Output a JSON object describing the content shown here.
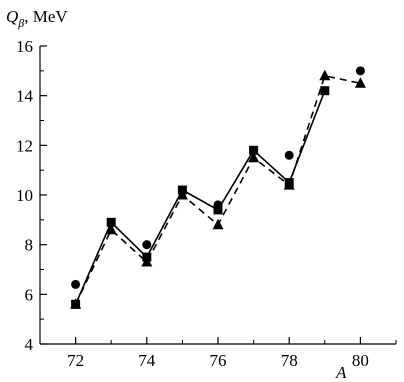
{
  "chart_data": {
    "type": "line",
    "ylabel_symbol": "Q",
    "ylabel_subscript": "β",
    "ylabel_unit": ", MeV",
    "xlabel": "A",
    "xlim": [
      71,
      81
    ],
    "ylim": [
      4,
      16
    ],
    "xticks": [
      72,
      74,
      76,
      78,
      80
    ],
    "yticks": [
      4,
      6,
      8,
      10,
      12,
      14,
      16
    ],
    "grid": false,
    "series": [
      {
        "marker": "square",
        "line": "solid",
        "x": [
          72,
          73,
          74,
          75,
          76,
          77,
          78,
          79
        ],
        "y": [
          5.6,
          8.9,
          7.5,
          10.2,
          9.4,
          11.8,
          10.5,
          14.2
        ]
      },
      {
        "marker": "triangle",
        "line": "dashed",
        "x": [
          72,
          73,
          74,
          75,
          76,
          77,
          78,
          79,
          80
        ],
        "y": [
          5.6,
          8.6,
          7.3,
          10.0,
          8.8,
          11.5,
          10.4,
          14.8,
          14.5
        ]
      },
      {
        "marker": "circle",
        "line": "none",
        "x": [
          72,
          74,
          76,
          78,
          80
        ],
        "y": [
          6.4,
          8.0,
          9.6,
          11.6,
          15.0
        ]
      }
    ]
  }
}
